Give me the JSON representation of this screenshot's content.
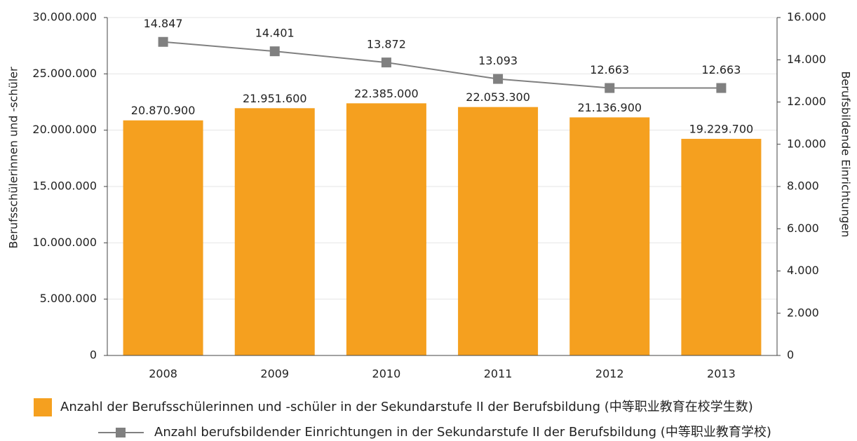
{
  "chart_data": {
    "type": "combo",
    "categories": [
      "2008",
      "2009",
      "2010",
      "2011",
      "2012",
      "2013"
    ],
    "series": [
      {
        "name": "Anzahl der Berufsschülerinnen und -schüler in der Sekundarstufe II der Berufsbildung (中等职业教育在校学生数)",
        "type": "bar",
        "color": "#f5a01f",
        "values": [
          20870900,
          21951600,
          22385000,
          22053300,
          21136900,
          19229700
        ],
        "value_labels": [
          "20.870.900",
          "21.951.600",
          "22.385.000",
          "22.053.300",
          "21.136.900",
          "19.229.700"
        ]
      },
      {
        "name": "Anzahl berufsbildender Einrichtungen in der Sekundarstufe II der Berufsbildung (中等职业教育学校)",
        "type": "line",
        "axis": "y2",
        "color": "#808080",
        "values": [
          14847,
          14401,
          13872,
          13093,
          12663,
          12663
        ],
        "value_labels": [
          "14.847",
          "14.401",
          "13.872",
          "13.093",
          "12.663",
          "12.663"
        ]
      }
    ],
    "ylabel": "Berufsschülerinnen und -schüler",
    "y2label": "Berufsbildende Einrichtungen",
    "ylim": [
      0,
      30000000
    ],
    "yticks": [
      0,
      {
        "value": 5000000,
        "label": "5.000.000"
      },
      {
        "value": 10000000,
        "label": "10.000.000"
      },
      {
        "value": 15000000,
        "label": "15.000.000"
      },
      {
        "value": 20000000,
        "label": "20.000.000"
      },
      {
        "value": 25000000,
        "label": "25.000.000"
      },
      {
        "value": 30000000,
        "label": "30.000.000"
      }
    ],
    "y2lim": [
      0,
      16000
    ],
    "y2ticks": [
      0,
      {
        "value": 2000,
        "label": "2.000"
      },
      {
        "value": 4000,
        "label": "4.000"
      },
      {
        "value": 6000,
        "label": "6.000"
      },
      {
        "value": 8000,
        "label": "8.000"
      },
      {
        "value": 10000,
        "label": "10.000"
      },
      {
        "value": 12000,
        "label": "12.000"
      },
      {
        "value": 14000,
        "label": "14.000"
      },
      {
        "value": 16000,
        "label": "16.000"
      }
    ],
    "grid": true,
    "legend": "bottom"
  }
}
